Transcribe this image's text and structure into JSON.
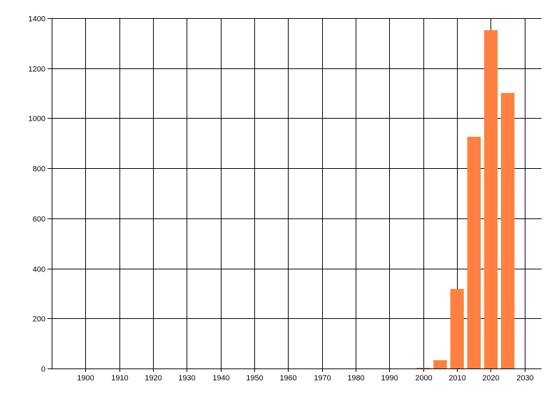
{
  "chart_data": {
    "type": "bar",
    "title": "",
    "xlabel": "",
    "ylabel": "",
    "x": [
      2000,
      2005,
      2010,
      2015,
      2020,
      2025
    ],
    "values": [
      3,
      33,
      318,
      926,
      1352,
      1101
    ],
    "bar_width_years": 4,
    "xlim": [
      1890,
      2035
    ],
    "ylim": [
      0,
      1400
    ],
    "xticks": [
      1900,
      1910,
      1920,
      1930,
      1940,
      1950,
      1960,
      1970,
      1980,
      1990,
      2000,
      2010,
      2020,
      2030
    ],
    "yticks": [
      0,
      200,
      400,
      600,
      800,
      1000,
      1200,
      1400
    ],
    "grid": true,
    "legend": "none",
    "bar_color": "#FF8040",
    "grid_color": "#000000"
  }
}
